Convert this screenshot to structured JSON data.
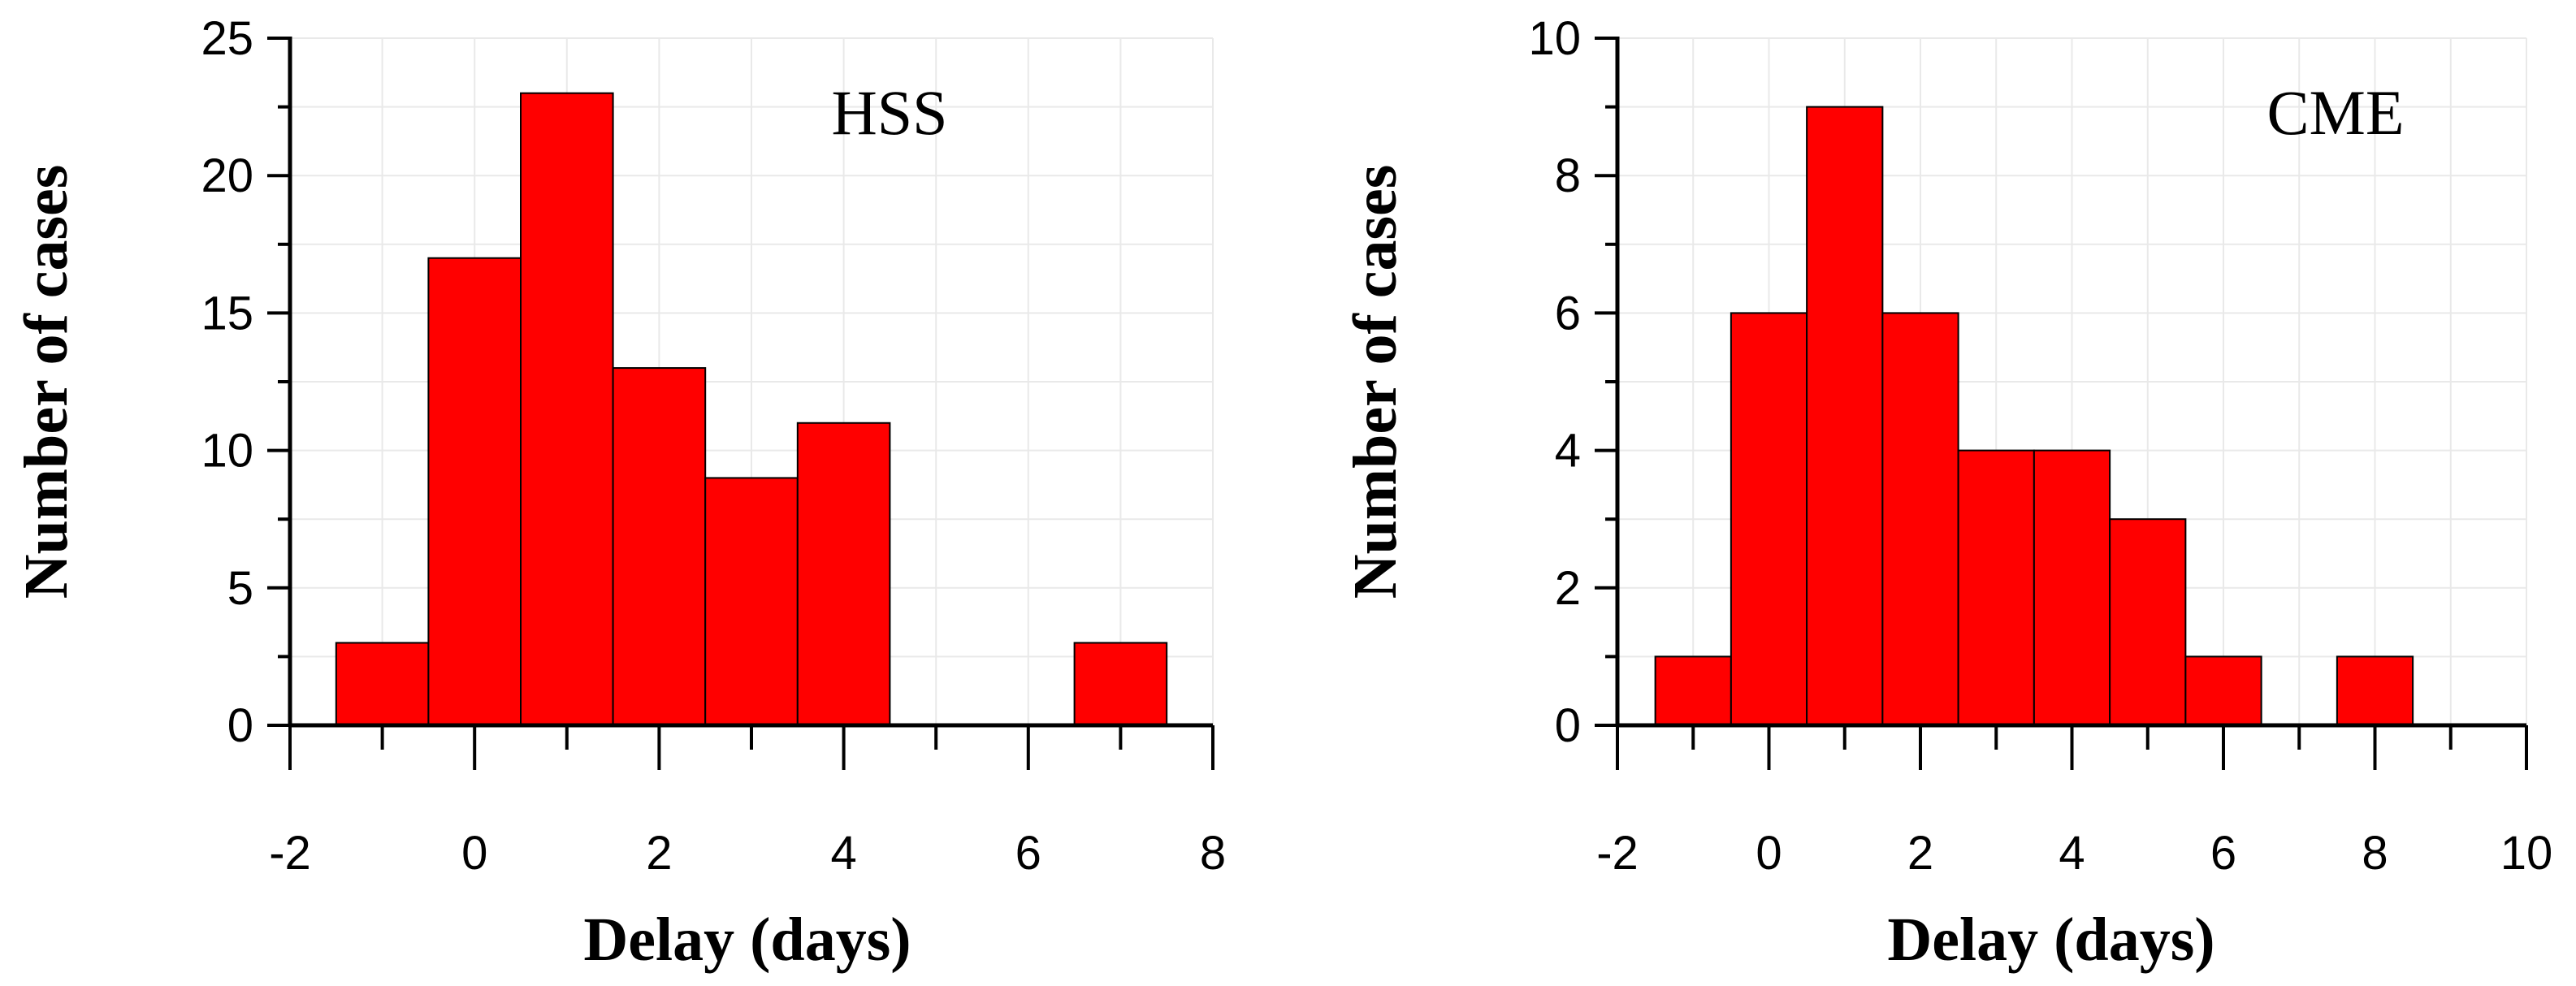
{
  "chart_data": [
    {
      "type": "bar",
      "annotation": "HSS",
      "xlabel": "Delay (days)",
      "ylabel": "Number of cases",
      "xlim": [
        -2,
        8
      ],
      "ylim": [
        0,
        25
      ],
      "xticks": [
        -2,
        0,
        2,
        4,
        6,
        8
      ],
      "yticks": [
        0,
        5,
        10,
        15,
        20,
        25
      ],
      "xminor": [
        -1,
        1,
        3,
        5,
        7
      ],
      "yminor": [
        2.5,
        7.5,
        12.5,
        17.5,
        22.5
      ],
      "bin_width": 1,
      "bin_centers": [
        -1,
        0,
        1,
        2,
        3,
        4,
        5,
        6,
        7
      ],
      "values": [
        3,
        17,
        23,
        13,
        9,
        11,
        0,
        0,
        3
      ],
      "grid": true
    },
    {
      "type": "bar",
      "annotation": "CME",
      "xlabel": "Delay (days)",
      "ylabel": "Number of cases",
      "xlim": [
        -2,
        10
      ],
      "ylim": [
        0,
        10
      ],
      "xticks": [
        -2,
        0,
        2,
        4,
        6,
        8,
        10
      ],
      "yticks": [
        0,
        2,
        4,
        6,
        8,
        10
      ],
      "xminor": [
        -1,
        1,
        3,
        5,
        7,
        9
      ],
      "yminor": [
        1,
        3,
        5,
        7,
        9
      ],
      "bin_width": 1,
      "bin_centers": [
        -1,
        0,
        1,
        2,
        3,
        4,
        5,
        6,
        7,
        8,
        9
      ],
      "values": [
        1,
        6,
        9,
        6,
        4,
        4,
        3,
        1,
        0,
        1,
        0
      ],
      "grid": true
    }
  ]
}
